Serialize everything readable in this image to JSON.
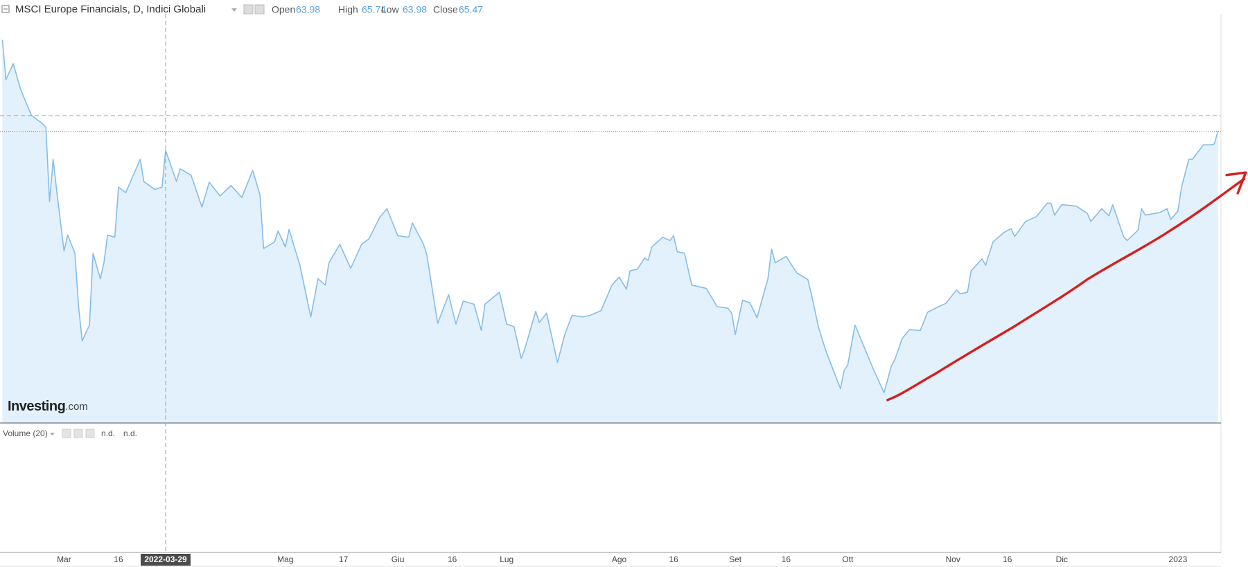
{
  "header": {
    "title": "MSCI Europe Financials, D, Indici Globali",
    "ohlc": [
      {
        "label": "Open",
        "value": 63.98
      },
      {
        "label": "High",
        "value": 65.74
      },
      {
        "label": "Low",
        "value": 63.98
      },
      {
        "label": "Close",
        "value": 65.47
      }
    ]
  },
  "watermark": {
    "brand": "Investing",
    "suffix": ".com"
  },
  "volume_pane": {
    "label": "Volume (20)",
    "values": [
      "n.d.",
      "n.d."
    ]
  },
  "chart_data": {
    "type": "area",
    "color": "#86bde6",
    "fill_color": "#e2f1fb",
    "crosshair_x": "2022-03-29",
    "xlim": [
      "2022-02-12",
      "2023-01-13"
    ],
    "ylim": [
      50.35,
      72.28
    ],
    "xticks": [
      {
        "value": "2022-03-01",
        "label": "Mar"
      },
      {
        "value": "2022-03-16",
        "label": "16"
      },
      {
        "value": "2022-05-01",
        "label": "Mag"
      },
      {
        "value": "2022-05-17",
        "label": "17"
      },
      {
        "value": "2022-06-01",
        "label": "Giu"
      },
      {
        "value": "2022-06-16",
        "label": "16"
      },
      {
        "value": "2022-07-01",
        "label": "Lug"
      },
      {
        "value": "2022-08-01",
        "label": "Ago"
      },
      {
        "value": "2022-08-16",
        "label": "16"
      },
      {
        "value": "2022-09-02",
        "label": "Set"
      },
      {
        "value": "2022-09-16",
        "label": "16"
      },
      {
        "value": "2022-10-03",
        "label": "Ott"
      },
      {
        "value": "2022-11-01",
        "label": "Nov"
      },
      {
        "value": "2022-11-16",
        "label": "16"
      },
      {
        "value": "2022-12-01",
        "label": "Dic"
      },
      {
        "value": "2023-01-02",
        "label": "2023"
      }
    ],
    "x": [
      "2022-02-12",
      "2022-02-13",
      "2022-02-15",
      "2022-02-17",
      "2022-02-20",
      "2022-02-23",
      "2022-02-24",
      "2022-02-25",
      "2022-02-26",
      "2022-02-27",
      "2022-03-01",
      "2022-03-02",
      "2022-03-04",
      "2022-03-05",
      "2022-03-06",
      "2022-03-08",
      "2022-03-09",
      "2022-03-11",
      "2022-03-12",
      "2022-03-13",
      "2022-03-15",
      "2022-03-16",
      "2022-03-18",
      "2022-03-22",
      "2022-03-23",
      "2022-03-26",
      "2022-03-28",
      "2022-03-29",
      "2022-04-01",
      "2022-04-02",
      "2022-04-05",
      "2022-04-08",
      "2022-04-10",
      "2022-04-13",
      "2022-04-16",
      "2022-04-19",
      "2022-04-22",
      "2022-04-24",
      "2022-04-25",
      "2022-04-28",
      "2022-04-29",
      "2022-05-01",
      "2022-05-02",
      "2022-05-05",
      "2022-05-08",
      "2022-05-10",
      "2022-05-12",
      "2022-05-13",
      "2022-05-16",
      "2022-05-19",
      "2022-05-22",
      "2022-05-24",
      "2022-05-27",
      "2022-05-29",
      "2022-06-01",
      "2022-06-04",
      "2022-06-05",
      "2022-06-08",
      "2022-06-09",
      "2022-06-11",
      "2022-06-12",
      "2022-06-15",
      "2022-06-17",
      "2022-06-19",
      "2022-06-22",
      "2022-06-24",
      "2022-06-25",
      "2022-06-29",
      "2022-07-01",
      "2022-07-03",
      "2022-07-05",
      "2022-07-06",
      "2022-07-09",
      "2022-07-10",
      "2022-07-12",
      "2022-07-15",
      "2022-07-17",
      "2022-07-19",
      "2022-07-22",
      "2022-07-24",
      "2022-07-27",
      "2022-07-30",
      "2022-08-01",
      "2022-08-03",
      "2022-08-04",
      "2022-08-06",
      "2022-08-08",
      "2022-08-09",
      "2022-08-10",
      "2022-08-13",
      "2022-08-15",
      "2022-08-16",
      "2022-08-17",
      "2022-08-19",
      "2022-08-21",
      "2022-08-25",
      "2022-08-28",
      "2022-08-31",
      "2022-09-01",
      "2022-09-02",
      "2022-09-04",
      "2022-09-06",
      "2022-09-08",
      "2022-09-11",
      "2022-09-12",
      "2022-09-13",
      "2022-09-16",
      "2022-09-19",
      "2022-09-22",
      "2022-09-23",
      "2022-09-25",
      "2022-09-27",
      "2022-10-01",
      "2022-10-02",
      "2022-10-03",
      "2022-10-05",
      "2022-10-08",
      "2022-10-10",
      "2022-10-13",
      "2022-10-15",
      "2022-10-16",
      "2022-10-18",
      "2022-10-20",
      "2022-10-23",
      "2022-10-25",
      "2022-10-28",
      "2022-10-30",
      "2022-11-02",
      "2022-11-03",
      "2022-11-05",
      "2022-11-06",
      "2022-11-09",
      "2022-11-10",
      "2022-11-12",
      "2022-11-15",
      "2022-11-17",
      "2022-11-18",
      "2022-11-21",
      "2022-11-24",
      "2022-11-27",
      "2022-11-28",
      "2022-11-29",
      "2022-12-01",
      "2022-12-05",
      "2022-12-08",
      "2022-12-09",
      "2022-12-12",
      "2022-12-14",
      "2022-12-15",
      "2022-12-18",
      "2022-12-19",
      "2022-12-22",
      "2022-12-23",
      "2022-12-24",
      "2022-12-28",
      "2022-12-30",
      "2022-12-31",
      "2023-01-02",
      "2023-01-03",
      "2023-01-05",
      "2023-01-06",
      "2023-01-09",
      "2023-01-11",
      "2023-01-12",
      "2023-01-13"
    ],
    "values": [
      70.22,
      68.15,
      68.98,
      67.66,
      66.3,
      65.88,
      65.68,
      61.84,
      64.02,
      62.37,
      59.27,
      60.1,
      59.15,
      56.38,
      54.61,
      55.43,
      59.15,
      57.83,
      58.66,
      60.1,
      59.98,
      62.58,
      62.29,
      64.02,
      62.87,
      62.46,
      62.58,
      64.48,
      62.87,
      63.53,
      63.2,
      61.55,
      62.83,
      62.12,
      62.66,
      62.04,
      63.45,
      62.17,
      59.4,
      59.73,
      60.31,
      59.48,
      60.39,
      58.53,
      55.85,
      57.83,
      57.5,
      58.66,
      59.61,
      58.37,
      59.61,
      59.89,
      61.01,
      61.46,
      60.06,
      59.98,
      60.72,
      59.65,
      59.07,
      56.67,
      55.52,
      57.0,
      55.48,
      56.67,
      56.51,
      55.15,
      56.51,
      57.13,
      55.48,
      55.35,
      53.7,
      54.2,
      56.14,
      55.56,
      56.05,
      53.49,
      54.94,
      55.93,
      55.85,
      55.93,
      56.18,
      57.5,
      57.91,
      57.29,
      58.24,
      58.32,
      58.9,
      58.78,
      59.48,
      59.98,
      59.81,
      60.06,
      59.23,
      59.15,
      57.5,
      57.33,
      56.38,
      56.3,
      56.05,
      54.94,
      56.71,
      56.59,
      55.81,
      57.83,
      59.36,
      58.66,
      58.99,
      58.12,
      57.79,
      57.0,
      55.27,
      54.07,
      52.13,
      53.08,
      53.37,
      55.43,
      54.07,
      53.16,
      51.92,
      53.29,
      53.66,
      54.73,
      55.19,
      55.15,
      56.09,
      56.38,
      56.55,
      57.25,
      57.05,
      57.13,
      58.24,
      58.86,
      58.53,
      59.73,
      60.22,
      60.43,
      60.02,
      60.8,
      61.05,
      61.75,
      61.75,
      61.13,
      61.67,
      61.59,
      61.22,
      60.8,
      61.46,
      61.09,
      61.67,
      60.02,
      59.81,
      60.35,
      61.46,
      61.13,
      61.26,
      61.46,
      60.89,
      61.34,
      62.58,
      64.02,
      64.02,
      64.77,
      64.77,
      64.81,
      65.47
    ]
  }
}
